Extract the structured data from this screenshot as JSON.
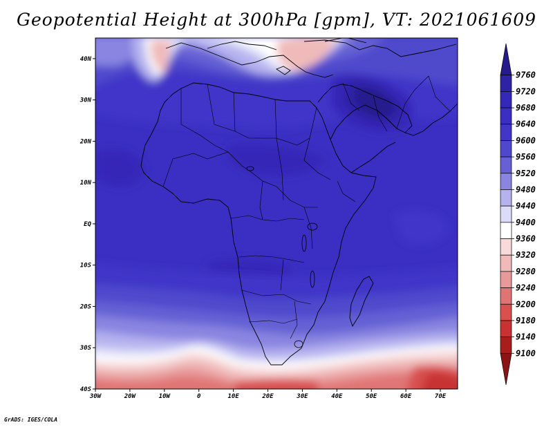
{
  "title": "Geopotential Height at 300hPa [gpm], VT: 2021061609",
  "footer": "GrADS: IGES/COLA",
  "map": {
    "lon_labels": [
      "30W",
      "20W",
      "10W",
      "0",
      "10E",
      "20E",
      "30E",
      "40E",
      "50E",
      "60E",
      "70E"
    ],
    "lat_labels": [
      "40N",
      "30N",
      "20N",
      "10N",
      "EQ",
      "10S",
      "20S",
      "30S",
      "40S"
    ],
    "lon_range": [
      -30,
      75
    ],
    "lat_range": [
      -40,
      45
    ]
  },
  "colorbar": {
    "levels": [
      "9760",
      "9720",
      "9680",
      "9640",
      "9600",
      "9560",
      "9520",
      "9480",
      "9440",
      "9400",
      "9360",
      "9320",
      "9280",
      "9240",
      "9200",
      "9180",
      "9140",
      "9100"
    ],
    "colors": [
      "#261a8c",
      "#2e22a6",
      "#3428b8",
      "#3a2fc2",
      "#4136c8",
      "#5048cc",
      "#6560d4",
      "#8985e0",
      "#b5b2ee",
      "#dcdcf8",
      "#ffffff",
      "#f8dada",
      "#f0baba",
      "#e89a9a",
      "#e07474",
      "#d85050",
      "#c83232",
      "#a81e1e",
      "#8c1414"
    ]
  }
}
